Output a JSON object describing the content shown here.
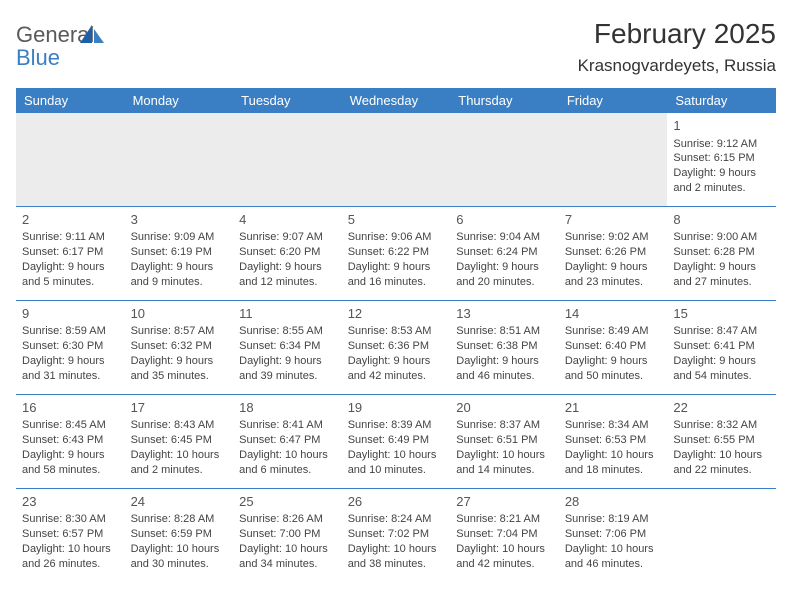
{
  "logo": {
    "text1": "General",
    "text2": "Blue"
  },
  "title": "February 2025",
  "location": "Krasnogvardeyets, Russia",
  "colors": {
    "header_bg": "#3a7fc4",
    "header_text": "#ffffff",
    "border": "#3a7fc4",
    "empty_bg": "#ececec",
    "body_text": "#444444",
    "title_text": "#333333",
    "logo_gray": "#5a5a5a",
    "logo_blue": "#3a7fc4"
  },
  "weekdays": [
    "Sunday",
    "Monday",
    "Tuesday",
    "Wednesday",
    "Thursday",
    "Friday",
    "Saturday"
  ],
  "weeks": [
    [
      null,
      null,
      null,
      null,
      null,
      null,
      {
        "n": "1",
        "sr": "Sunrise: 9:12 AM",
        "ss": "Sunset: 6:15 PM",
        "dl": "Daylight: 9 hours and 2 minutes."
      }
    ],
    [
      {
        "n": "2",
        "sr": "Sunrise: 9:11 AM",
        "ss": "Sunset: 6:17 PM",
        "dl": "Daylight: 9 hours and 5 minutes."
      },
      {
        "n": "3",
        "sr": "Sunrise: 9:09 AM",
        "ss": "Sunset: 6:19 PM",
        "dl": "Daylight: 9 hours and 9 minutes."
      },
      {
        "n": "4",
        "sr": "Sunrise: 9:07 AM",
        "ss": "Sunset: 6:20 PM",
        "dl": "Daylight: 9 hours and 12 minutes."
      },
      {
        "n": "5",
        "sr": "Sunrise: 9:06 AM",
        "ss": "Sunset: 6:22 PM",
        "dl": "Daylight: 9 hours and 16 minutes."
      },
      {
        "n": "6",
        "sr": "Sunrise: 9:04 AM",
        "ss": "Sunset: 6:24 PM",
        "dl": "Daylight: 9 hours and 20 minutes."
      },
      {
        "n": "7",
        "sr": "Sunrise: 9:02 AM",
        "ss": "Sunset: 6:26 PM",
        "dl": "Daylight: 9 hours and 23 minutes."
      },
      {
        "n": "8",
        "sr": "Sunrise: 9:00 AM",
        "ss": "Sunset: 6:28 PM",
        "dl": "Daylight: 9 hours and 27 minutes."
      }
    ],
    [
      {
        "n": "9",
        "sr": "Sunrise: 8:59 AM",
        "ss": "Sunset: 6:30 PM",
        "dl": "Daylight: 9 hours and 31 minutes."
      },
      {
        "n": "10",
        "sr": "Sunrise: 8:57 AM",
        "ss": "Sunset: 6:32 PM",
        "dl": "Daylight: 9 hours and 35 minutes."
      },
      {
        "n": "11",
        "sr": "Sunrise: 8:55 AM",
        "ss": "Sunset: 6:34 PM",
        "dl": "Daylight: 9 hours and 39 minutes."
      },
      {
        "n": "12",
        "sr": "Sunrise: 8:53 AM",
        "ss": "Sunset: 6:36 PM",
        "dl": "Daylight: 9 hours and 42 minutes."
      },
      {
        "n": "13",
        "sr": "Sunrise: 8:51 AM",
        "ss": "Sunset: 6:38 PM",
        "dl": "Daylight: 9 hours and 46 minutes."
      },
      {
        "n": "14",
        "sr": "Sunrise: 8:49 AM",
        "ss": "Sunset: 6:40 PM",
        "dl": "Daylight: 9 hours and 50 minutes."
      },
      {
        "n": "15",
        "sr": "Sunrise: 8:47 AM",
        "ss": "Sunset: 6:41 PM",
        "dl": "Daylight: 9 hours and 54 minutes."
      }
    ],
    [
      {
        "n": "16",
        "sr": "Sunrise: 8:45 AM",
        "ss": "Sunset: 6:43 PM",
        "dl": "Daylight: 9 hours and 58 minutes."
      },
      {
        "n": "17",
        "sr": "Sunrise: 8:43 AM",
        "ss": "Sunset: 6:45 PM",
        "dl": "Daylight: 10 hours and 2 minutes."
      },
      {
        "n": "18",
        "sr": "Sunrise: 8:41 AM",
        "ss": "Sunset: 6:47 PM",
        "dl": "Daylight: 10 hours and 6 minutes."
      },
      {
        "n": "19",
        "sr": "Sunrise: 8:39 AM",
        "ss": "Sunset: 6:49 PM",
        "dl": "Daylight: 10 hours and 10 minutes."
      },
      {
        "n": "20",
        "sr": "Sunrise: 8:37 AM",
        "ss": "Sunset: 6:51 PM",
        "dl": "Daylight: 10 hours and 14 minutes."
      },
      {
        "n": "21",
        "sr": "Sunrise: 8:34 AM",
        "ss": "Sunset: 6:53 PM",
        "dl": "Daylight: 10 hours and 18 minutes."
      },
      {
        "n": "22",
        "sr": "Sunrise: 8:32 AM",
        "ss": "Sunset: 6:55 PM",
        "dl": "Daylight: 10 hours and 22 minutes."
      }
    ],
    [
      {
        "n": "23",
        "sr": "Sunrise: 8:30 AM",
        "ss": "Sunset: 6:57 PM",
        "dl": "Daylight: 10 hours and 26 minutes."
      },
      {
        "n": "24",
        "sr": "Sunrise: 8:28 AM",
        "ss": "Sunset: 6:59 PM",
        "dl": "Daylight: 10 hours and 30 minutes."
      },
      {
        "n": "25",
        "sr": "Sunrise: 8:26 AM",
        "ss": "Sunset: 7:00 PM",
        "dl": "Daylight: 10 hours and 34 minutes."
      },
      {
        "n": "26",
        "sr": "Sunrise: 8:24 AM",
        "ss": "Sunset: 7:02 PM",
        "dl": "Daylight: 10 hours and 38 minutes."
      },
      {
        "n": "27",
        "sr": "Sunrise: 8:21 AM",
        "ss": "Sunset: 7:04 PM",
        "dl": "Daylight: 10 hours and 42 minutes."
      },
      {
        "n": "28",
        "sr": "Sunrise: 8:19 AM",
        "ss": "Sunset: 7:06 PM",
        "dl": "Daylight: 10 hours and 46 minutes."
      },
      null
    ]
  ]
}
